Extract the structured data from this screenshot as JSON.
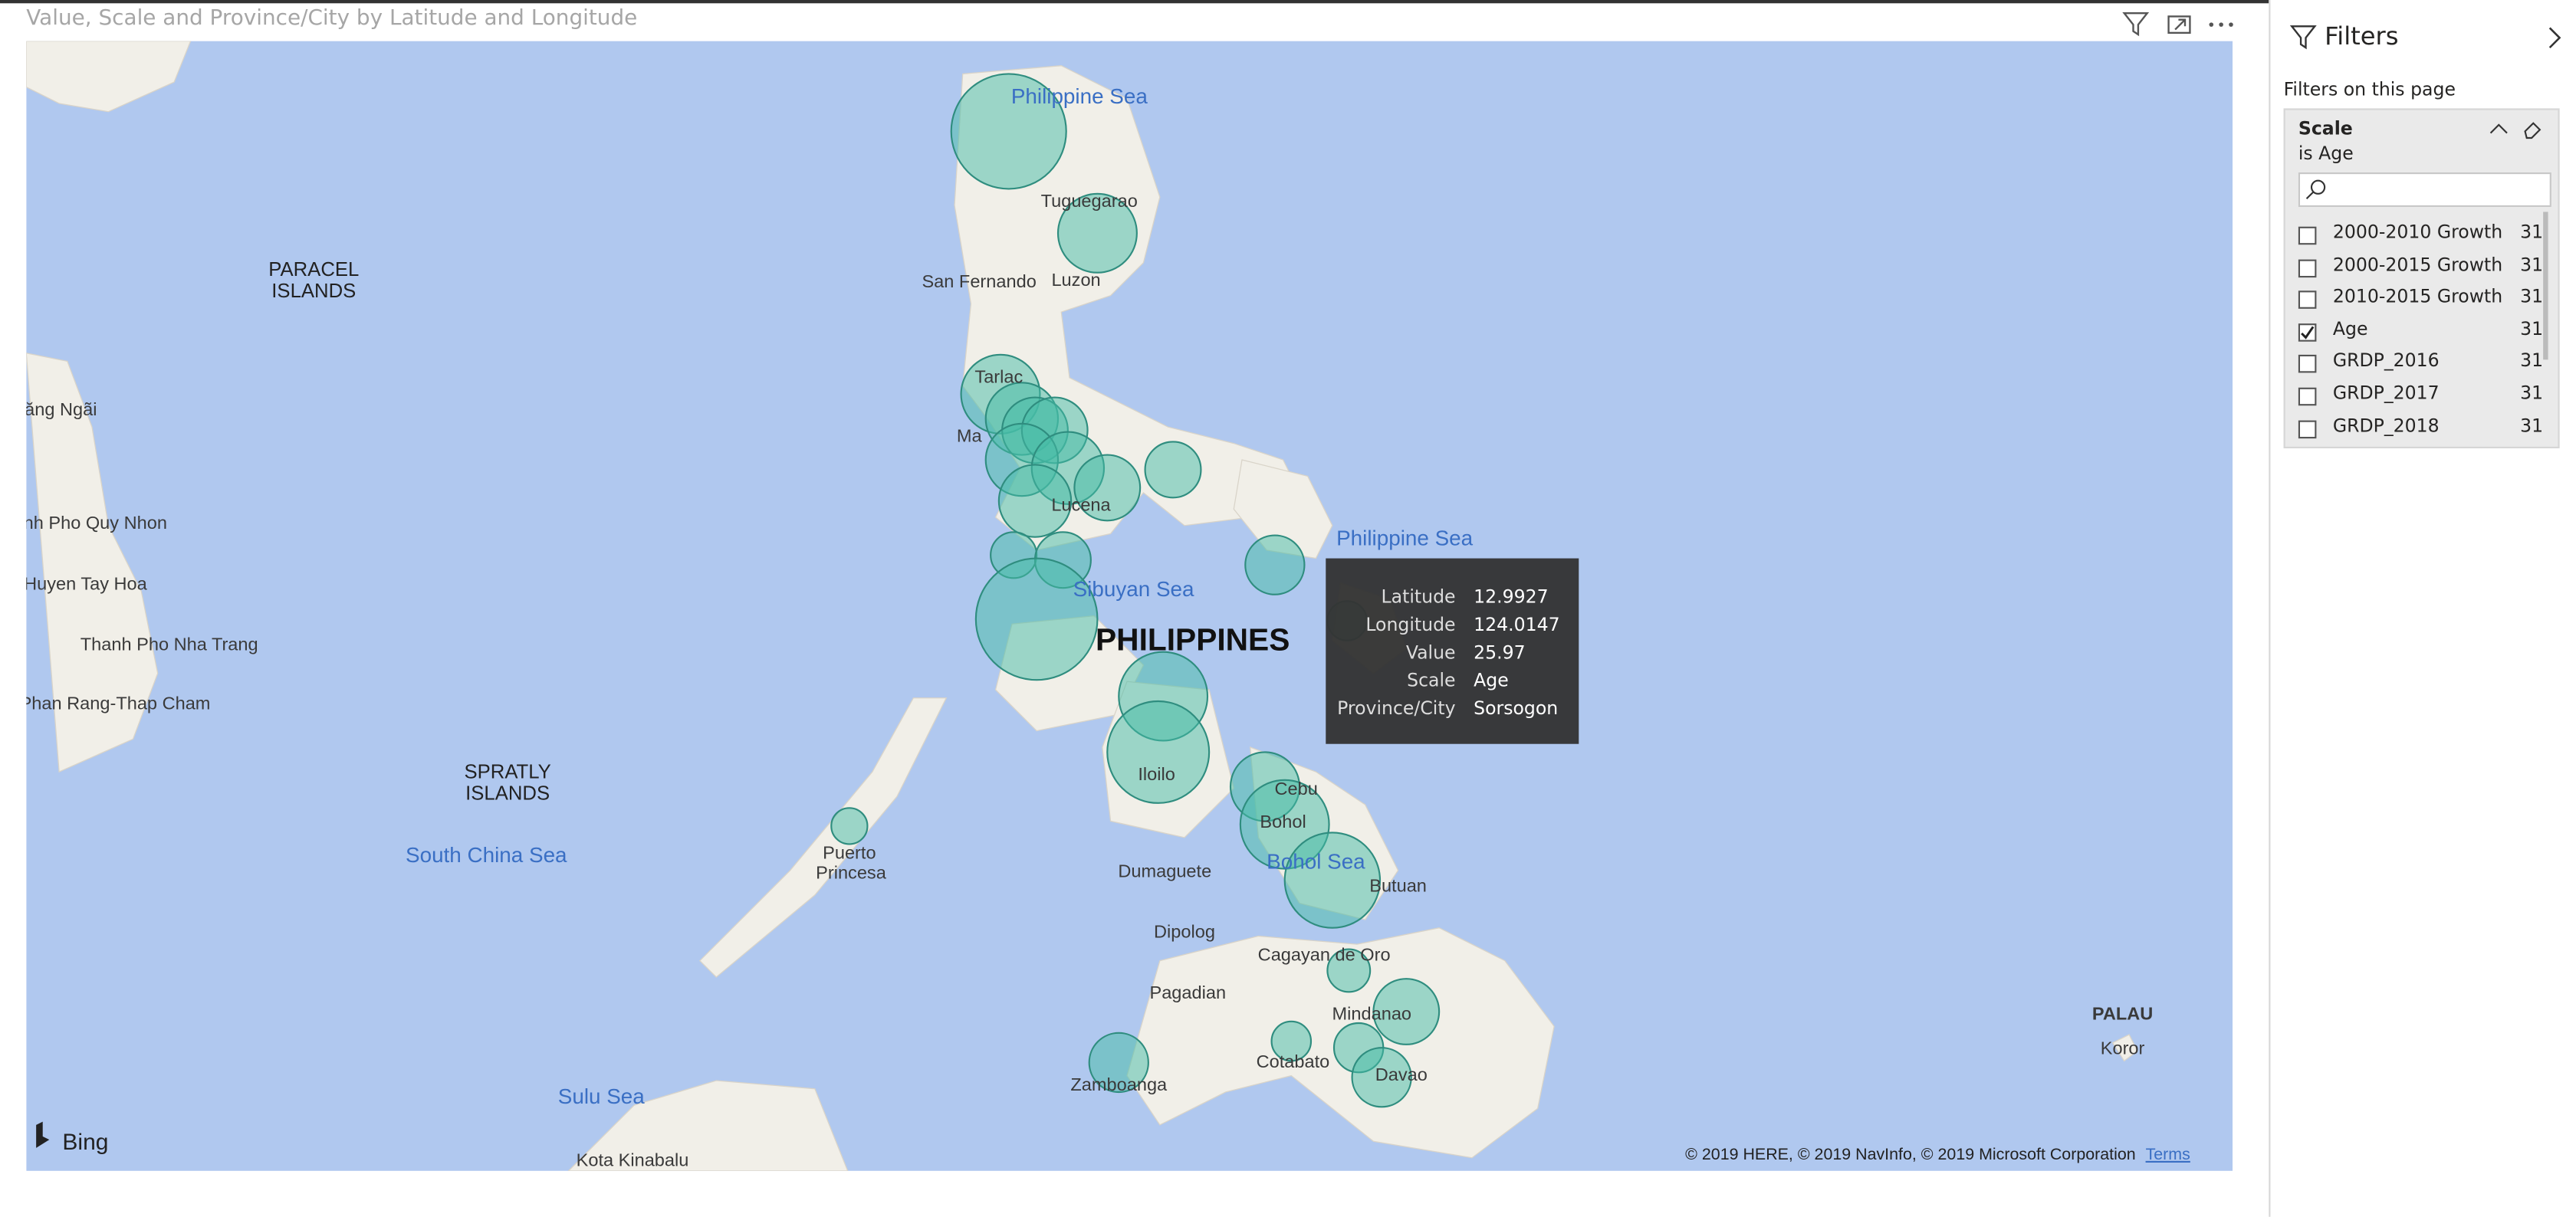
{
  "visual": {
    "title": "Value, Scale and Province/City by Latitude and Longitude",
    "map_labels": [
      "Philippine Sea",
      "Tuguegarao",
      "Luzon",
      "San Fernando",
      "PARACEL",
      "ISLANDS",
      "ăng Ngãi",
      "nh Pho Quy Nhon",
      "Huyen Tay Hoa",
      "Thanh Pho Nha Trang",
      "Phan Rang-Thap Cham",
      "Tarlac",
      "Ma",
      "Lucena",
      "Sibuyan Sea",
      "Philippine Sea",
      "PHILIPPINES",
      "Iloilo",
      "Cebu",
      "Bohol",
      "Bohol Sea",
      "Butuan",
      "SPRATLY",
      "ISLANDS",
      "South China Sea",
      "Puerto",
      "Princesa",
      "Dumaguete",
      "Dipolog",
      "Cagayan de Oro",
      "Pagadian",
      "Mindanao",
      "Cotabato",
      "Zamboanga",
      "Davao",
      "PALAU",
      "Koror",
      "Sulu Sea",
      "Kota Kinabalu"
    ],
    "brand": "Bing",
    "copyright": "© 2019 HERE, © 2019 NavInfo, © 2019 Microsoft Corporation",
    "terms": "Terms",
    "tooltip": [
      [
        "Latitude",
        "12.9927"
      ],
      [
        "Longitude",
        "124.0147"
      ],
      [
        "Value",
        "25.97"
      ],
      [
        "Scale",
        "Age"
      ],
      [
        "Province/City",
        "Sorsogon"
      ]
    ]
  },
  "filters": {
    "title": "Filters",
    "section": "Filters on this page",
    "card": {
      "field": "Scale",
      "condition": "is Age",
      "items": [
        {
          "name": "2000-2010 Growth",
          "count": 31,
          "checked": false
        },
        {
          "name": "2000-2015 Growth",
          "count": 31,
          "checked": false
        },
        {
          "name": "2010-2015 Growth",
          "count": 31,
          "checked": false
        },
        {
          "name": "Age",
          "count": 31,
          "checked": true
        },
        {
          "name": "GRDP_2016",
          "count": 31,
          "checked": false
        },
        {
          "name": "GRDP_2017",
          "count": 31,
          "checked": false
        },
        {
          "name": "GRDP_2018",
          "count": 31,
          "checked": false
        }
      ]
    }
  }
}
